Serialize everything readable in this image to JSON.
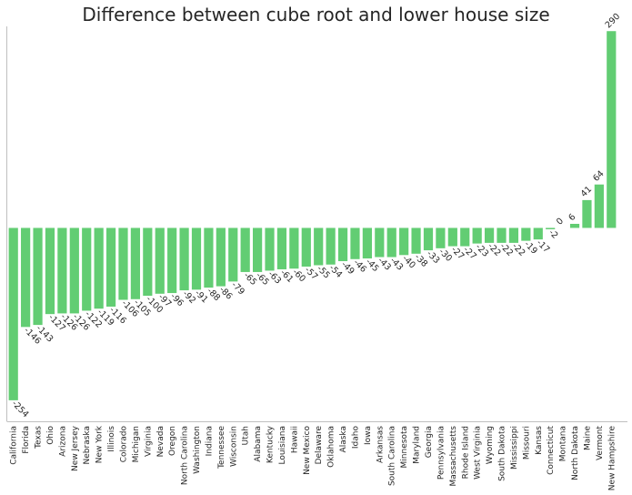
{
  "chart_data": {
    "type": "bar",
    "title": "Difference between cube root and lower house size",
    "xlabel": "",
    "ylabel": "",
    "categories": [
      "California",
      "Florida",
      "Texas",
      "Ohio",
      "Arizona",
      "New Jersey",
      "Nebraska",
      "New York",
      "Illinois",
      "Colorado",
      "Michigan",
      "Virginia",
      "Nevada",
      "Oregon",
      "North Carolina",
      "Washington",
      "Indiana",
      "Tennessee",
      "Wisconsin",
      "Utah",
      "Alabama",
      "Kentucky",
      "Louisiana",
      "Hawaii",
      "New Mexico",
      "Delaware",
      "Oklahoma",
      "Alaska",
      "Idaho",
      "Iowa",
      "Arkansas",
      "South Carolina",
      "Minnesota",
      "Maryland",
      "Georgia",
      "Pennsylvania",
      "Massachusetts",
      "Rhode Island",
      "West Virginia",
      "Wyoming",
      "South Dakota",
      "Mississippi",
      "Missouri",
      "Kansas",
      "Connecticut",
      "Montana",
      "North Dakota",
      "Maine",
      "Vermont",
      "New Hampshire"
    ],
    "values": [
      -254,
      -146,
      -143,
      -127,
      -126,
      -126,
      -122,
      -119,
      -116,
      -106,
      -105,
      -100,
      -97,
      -96,
      -92,
      -91,
      -88,
      -86,
      -79,
      -65,
      -65,
      -63,
      -61,
      -60,
      -57,
      -55,
      -54,
      -49,
      -46,
      -45,
      -43,
      -43,
      -40,
      -38,
      -33,
      -30,
      -27,
      -27,
      -23,
      -22,
      -22,
      -22,
      -19,
      -17,
      -2,
      0,
      6,
      41,
      64,
      290
    ],
    "bar_color": "#62cd73",
    "ylim": [
      -285,
      297
    ],
    "grid": false,
    "legend": "none"
  }
}
